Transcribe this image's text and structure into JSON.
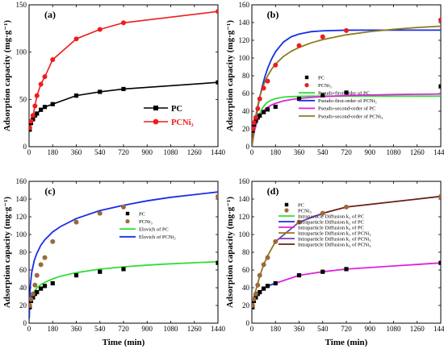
{
  "figure": {
    "ylabel": "Adsorption capacity (mg·g⁻¹)",
    "xlabel": "Time (min)"
  },
  "chart_data": [
    {
      "type": "line",
      "panel_label": "(a)",
      "xlabel": "",
      "ylabel": "Adsorption capacity (mg·g⁻¹)",
      "xlim": [
        0,
        1440
      ],
      "ylim": [
        0,
        150
      ],
      "xticks": [
        0,
        180,
        360,
        540,
        720,
        900,
        1080,
        1260,
        1440
      ],
      "yticks": [
        0,
        50,
        100,
        150
      ],
      "legend_position": "center-right",
      "series": [
        {
          "name": "PC",
          "color": "#000000",
          "marker": "square",
          "line": true,
          "x": [
            5,
            15,
            30,
            45,
            60,
            90,
            120,
            180,
            360,
            540,
            720,
            1440
          ],
          "y": [
            18,
            25,
            29,
            33,
            35,
            39,
            42,
            45,
            54,
            58,
            61,
            68
          ]
        },
        {
          "name": "PCNi₃",
          "color": "#ee1c1c",
          "marker": "circle",
          "line": true,
          "x": [
            5,
            15,
            30,
            45,
            60,
            90,
            120,
            180,
            360,
            540,
            720,
            1440
          ],
          "y": [
            20,
            27,
            33,
            43,
            54,
            66,
            74,
            92,
            114,
            124,
            131,
            143
          ]
        }
      ]
    },
    {
      "type": "line",
      "panel_label": "(b)",
      "xlabel": "",
      "ylabel": "Adsorption capacity (mg·g⁻¹)",
      "xlim": [
        0,
        1440
      ],
      "ylim": [
        0,
        160
      ],
      "xticks": [
        0,
        180,
        360,
        540,
        720,
        900,
        1080,
        1260,
        1440
      ],
      "yticks": [
        0,
        20,
        40,
        60,
        80,
        100,
        120,
        140,
        160
      ],
      "legend_position": "right",
      "series": [
        {
          "name": "PC",
          "color": "#000000",
          "marker": "square",
          "line": false,
          "x": [
            5,
            15,
            30,
            45,
            60,
            90,
            120,
            180,
            360,
            540,
            720,
            1440
          ],
          "y": [
            18,
            25,
            29,
            33,
            35,
            39,
            42,
            45,
            54,
            58,
            61,
            68
          ]
        },
        {
          "name": "PCNi₃",
          "color": "#ee1c1c",
          "marker": "circle",
          "line": false,
          "x": [
            5,
            15,
            30,
            45,
            60,
            90,
            120,
            180,
            360,
            540,
            720,
            1440
          ],
          "y": [
            20,
            27,
            33,
            43,
            54,
            66,
            74,
            92,
            114,
            124,
            131,
            143
          ]
        },
        {
          "name": "Pseudo-first-order of PC",
          "color": "#33dd33",
          "line": true,
          "x": [
            0,
            10,
            20,
            40,
            60,
            80,
            100,
            120,
            150,
            180,
            240,
            300,
            360,
            450,
            540,
            720,
            900,
            1080,
            1260,
            1440
          ],
          "y": [
            0,
            9.5,
            17.3,
            29.3,
            37.6,
            43.4,
            47.4,
            50.2,
            52.6,
            54.2,
            55.9,
            56.5,
            56.8,
            57.0,
            57.0,
            57.0,
            57.0,
            57.0,
            57.0,
            57.0
          ]
        },
        {
          "name": "Pseudo-first-order of PCNi₃",
          "color": "#1a2ee6",
          "line": true,
          "x": [
            0,
            10,
            20,
            40,
            60,
            80,
            100,
            120,
            150,
            180,
            240,
            300,
            360,
            450,
            540,
            720,
            900,
            1080,
            1260,
            1440
          ],
          "y": [
            0,
            11.5,
            22.0,
            40.4,
            55.7,
            68.5,
            79.2,
            88.1,
            98.8,
            107.0,
            118.0,
            124.0,
            127.0,
            129.7,
            130.7,
            131.4,
            131.5,
            131.5,
            131.5,
            131.5
          ]
        },
        {
          "name": "Pseudo-second-order of PC",
          "color": "#dd22dd",
          "line": true,
          "x": [
            0,
            10,
            20,
            40,
            60,
            80,
            100,
            120,
            150,
            180,
            240,
            300,
            360,
            450,
            540,
            720,
            900,
            1080,
            1260,
            1440
          ],
          "y": [
            0,
            11.0,
            18.6,
            28.5,
            34.7,
            39.0,
            42.1,
            44.4,
            47.0,
            48.9,
            51.6,
            53.2,
            54.4,
            55.6,
            56.5,
            57.6,
            58.3,
            58.8,
            59.1,
            59.4
          ]
        },
        {
          "name": "Pseudo-second-order of PCNi₃",
          "color": "#8e7b1e",
          "line": true,
          "x": [
            0,
            10,
            20,
            40,
            60,
            80,
            100,
            120,
            150,
            180,
            240,
            300,
            360,
            450,
            540,
            720,
            900,
            1080,
            1260,
            1440
          ],
          "y": [
            0,
            14.2,
            25.8,
            43.4,
            56.2,
            65.9,
            73.6,
            79.8,
            87.4,
            93.2,
            101.7,
            107.6,
            112.0,
            117.0,
            120.8,
            126.2,
            129.8,
            132.4,
            134.4,
            135.9
          ]
        }
      ]
    },
    {
      "type": "line",
      "panel_label": "(c)",
      "xlabel": "Time (min)",
      "ylabel": "Adsorption capacity (mg·g⁻¹)",
      "xlim": [
        0,
        1440
      ],
      "ylim": [
        0,
        160
      ],
      "xticks": [
        0,
        180,
        360,
        540,
        720,
        900,
        1080,
        1260,
        1440
      ],
      "yticks": [
        0,
        20,
        40,
        60,
        80,
        100,
        120,
        140,
        160
      ],
      "legend_position": "upper-center",
      "series": [
        {
          "name": "PC",
          "color": "#000000",
          "marker": "square",
          "line": false,
          "x": [
            5,
            15,
            30,
            45,
            60,
            90,
            120,
            180,
            360,
            540,
            720,
            1440
          ],
          "y": [
            18,
            25,
            29,
            33,
            35,
            39,
            42,
            45,
            54,
            58,
            61,
            68
          ]
        },
        {
          "name": "PCNi₃",
          "color": "#9a6a3c",
          "marker": "circle",
          "line": false,
          "x": [
            5,
            15,
            30,
            45,
            60,
            90,
            120,
            180,
            360,
            540,
            720,
            1440
          ],
          "y": [
            20,
            27,
            33,
            43,
            54,
            66,
            74,
            92,
            114,
            124,
            131,
            143
          ]
        },
        {
          "name": "Elovich of PC",
          "color": "#33dd33",
          "line": true,
          "x": [
            1,
            5,
            10,
            20,
            40,
            60,
            90,
            120,
            180,
            240,
            360,
            540,
            720,
            900,
            1080,
            1260,
            1440
          ],
          "y": [
            5,
            18,
            24,
            30,
            36,
            40,
            43.5,
            46,
            50,
            53,
            57,
            61,
            63.5,
            65.5,
            67,
            68.2,
            69.3
          ]
        },
        {
          "name": "Elovich of PCNi₃",
          "color": "#1a2ee6",
          "line": true,
          "x": [
            1,
            5,
            10,
            20,
            40,
            60,
            90,
            120,
            180,
            240,
            360,
            540,
            720,
            900,
            1080,
            1260,
            1440
          ],
          "y": [
            5,
            28,
            43,
            57,
            71,
            79,
            88,
            94,
            103,
            109,
            118,
            127,
            133,
            138,
            142,
            145,
            148
          ]
        }
      ]
    },
    {
      "type": "line",
      "panel_label": "(d)",
      "xlabel": "Time (min)",
      "ylabel": "Adsorption capacity (mg·g⁻¹)",
      "xlim": [
        0,
        1440
      ],
      "ylim": [
        0,
        160
      ],
      "xticks": [
        0,
        180,
        360,
        540,
        720,
        900,
        1080,
        1260,
        1440
      ],
      "yticks": [
        0,
        20,
        40,
        60,
        80,
        100,
        120,
        140,
        160
      ],
      "legend_position": "upper-center",
      "series": [
        {
          "name": "PC",
          "color": "#000000",
          "marker": "square",
          "line": false,
          "x": [
            5,
            15,
            30,
            45,
            60,
            90,
            120,
            180,
            360,
            540,
            720,
            1440
          ],
          "y": [
            18,
            25,
            29,
            33,
            35,
            39,
            42,
            45,
            54,
            58,
            61,
            68
          ]
        },
        {
          "name": "PCNi₃",
          "color": "#9a6a3c",
          "marker": "circle",
          "line": false,
          "x": [
            5,
            15,
            30,
            45,
            60,
            90,
            120,
            180,
            360,
            540,
            720,
            1440
          ],
          "y": [
            20,
            27,
            33,
            43,
            54,
            66,
            74,
            92,
            114,
            124,
            131,
            143
          ]
        },
        {
          "name": "Intraparticle Diffusion k₁ of PC",
          "color": "#33dd33",
          "line": true,
          "x": [
            5,
            15,
            30,
            45,
            60
          ],
          "y": [
            18,
            25,
            30,
            33,
            35
          ]
        },
        {
          "name": "Intraparticle Diffusion k₂ of PC",
          "color": "#1a2ee6",
          "line": true,
          "x": [
            60,
            90,
            120,
            180
          ],
          "y": [
            35,
            39,
            42,
            45
          ]
        },
        {
          "name": "Intraparticle Diffusion k₃ of PC",
          "color": "#dd22dd",
          "line": true,
          "x": [
            180,
            360,
            540,
            720,
            1440
          ],
          "y": [
            45,
            54,
            58,
            61,
            68
          ]
        },
        {
          "name": "Intraparticle Diffusion k₁ of PCNi₃",
          "color": "#8e7b1e",
          "line": true,
          "x": [
            5,
            15,
            30,
            45,
            60,
            90,
            120,
            180
          ],
          "y": [
            20,
            29,
            37,
            45,
            53,
            66,
            76,
            92
          ]
        },
        {
          "name": "Intraparticle Diffusion k₂ of PCNi₃",
          "color": "#7b3fb0",
          "line": true,
          "x": [
            180,
            360,
            540
          ],
          "y": [
            92,
            114,
            124
          ]
        },
        {
          "name": "Intraparticle Diffusion k₃ of PCNi₃",
          "color": "#6b1f12",
          "line": true,
          "x": [
            540,
            720,
            1440
          ],
          "y": [
            124,
            131,
            143
          ]
        }
      ]
    }
  ]
}
